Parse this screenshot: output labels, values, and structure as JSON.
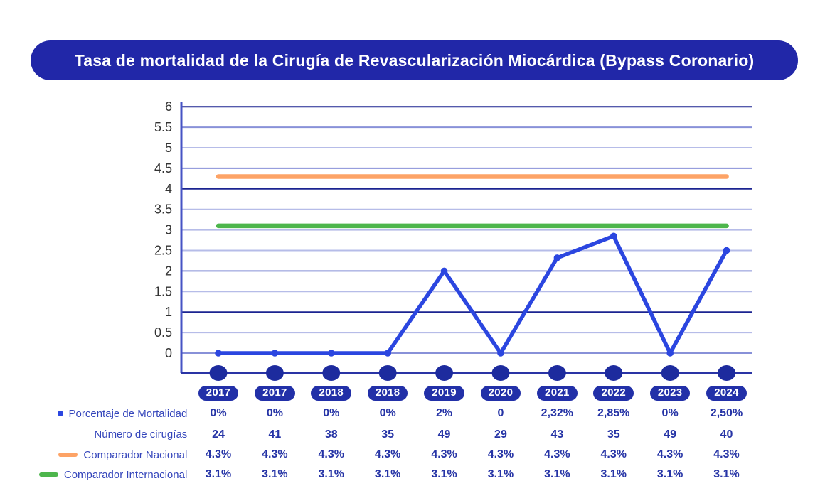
{
  "title": {
    "text": "Tasa de mortalidad de la Cirugía de Revascularización Miocárdica (Bypass Coronario)"
  },
  "colors": {
    "banner_bg": "#2127a8",
    "banner_text": "#ffffff",
    "series_mortality": "#2b46e0",
    "series_national": "#fda366",
    "series_international": "#4db64c",
    "axis_vertical": "#4653c4",
    "axis_bottom": "#2a34a5",
    "axis_marker_dot": "#1d2b9e",
    "gridline_dark": "#1b2491",
    "gridline_medium": "#8891d8",
    "gridline_light": "#b6bce8",
    "tick_text": "#333333",
    "table_value_text": "#2634a6",
    "table_label_text": "#3445bb",
    "year_pill_bg": "#2230a8"
  },
  "chart_data": {
    "type": "line",
    "title": "Tasa de mortalidad de la Cirugía de Revascularización Miocárdica (Bypass Coronario)",
    "categories": [
      "2017",
      "2017",
      "2018",
      "2018",
      "2019",
      "2020",
      "2021",
      "2022",
      "2023",
      "2024"
    ],
    "series": [
      {
        "name": "Porcentaje de Mortalidad",
        "style": "line-markers",
        "color": "#2b46e0",
        "values": [
          0,
          0,
          0,
          0,
          2,
          0,
          2.32,
          2.85,
          0,
          2.5
        ]
      },
      {
        "name": "Comparador Nacional",
        "style": "reference-line",
        "color": "#fda366",
        "values": [
          4.3,
          4.3,
          4.3,
          4.3,
          4.3,
          4.3,
          4.3,
          4.3,
          4.3,
          4.3
        ]
      },
      {
        "name": "Comparador Internacional",
        "style": "reference-line",
        "color": "#4db64c",
        "values": [
          3.1,
          3.1,
          3.1,
          3.1,
          3.1,
          3.1,
          3.1,
          3.1,
          3.1,
          3.1
        ]
      }
    ],
    "y_ticks": [
      6,
      5.5,
      5,
      4.5,
      4,
      3.5,
      3,
      2.5,
      2,
      1.5,
      1,
      0.5,
      0
    ],
    "ylim": [
      0,
      6
    ],
    "xlabel": "",
    "ylabel": "",
    "grid": true,
    "legend_position": "left-of-table"
  },
  "table": {
    "years": [
      "2017",
      "2017",
      "2018",
      "2018",
      "2019",
      "2020",
      "2021",
      "2022",
      "2023",
      "2024"
    ],
    "rows": [
      {
        "label": "Porcentaje de Mortalidad",
        "marker": "blue-dot",
        "values": [
          "0%",
          "0%",
          "0%",
          "0%",
          "2%",
          "0",
          "2,32%",
          "2,85%",
          "0%",
          "2,50%"
        ]
      },
      {
        "label": "Número de cirugías",
        "marker": "none",
        "values": [
          "24",
          "41",
          "38",
          "35",
          "49",
          "29",
          "43",
          "35",
          "49",
          "40"
        ]
      },
      {
        "label": "Comparador Nacional",
        "marker": "orange-dash",
        "values": [
          "4.3%",
          "4.3%",
          "4.3%",
          "4.3%",
          "4.3%",
          "4.3%",
          "4.3%",
          "4.3%",
          "4.3%",
          "4.3%"
        ]
      },
      {
        "label": "Comparador Internacional",
        "marker": "green-dash",
        "values": [
          "3.1%",
          "3.1%",
          "3.1%",
          "3.1%",
          "3.1%",
          "3.1%",
          "3.1%",
          "3.1%",
          "3.1%",
          "3.1%"
        ]
      }
    ]
  }
}
